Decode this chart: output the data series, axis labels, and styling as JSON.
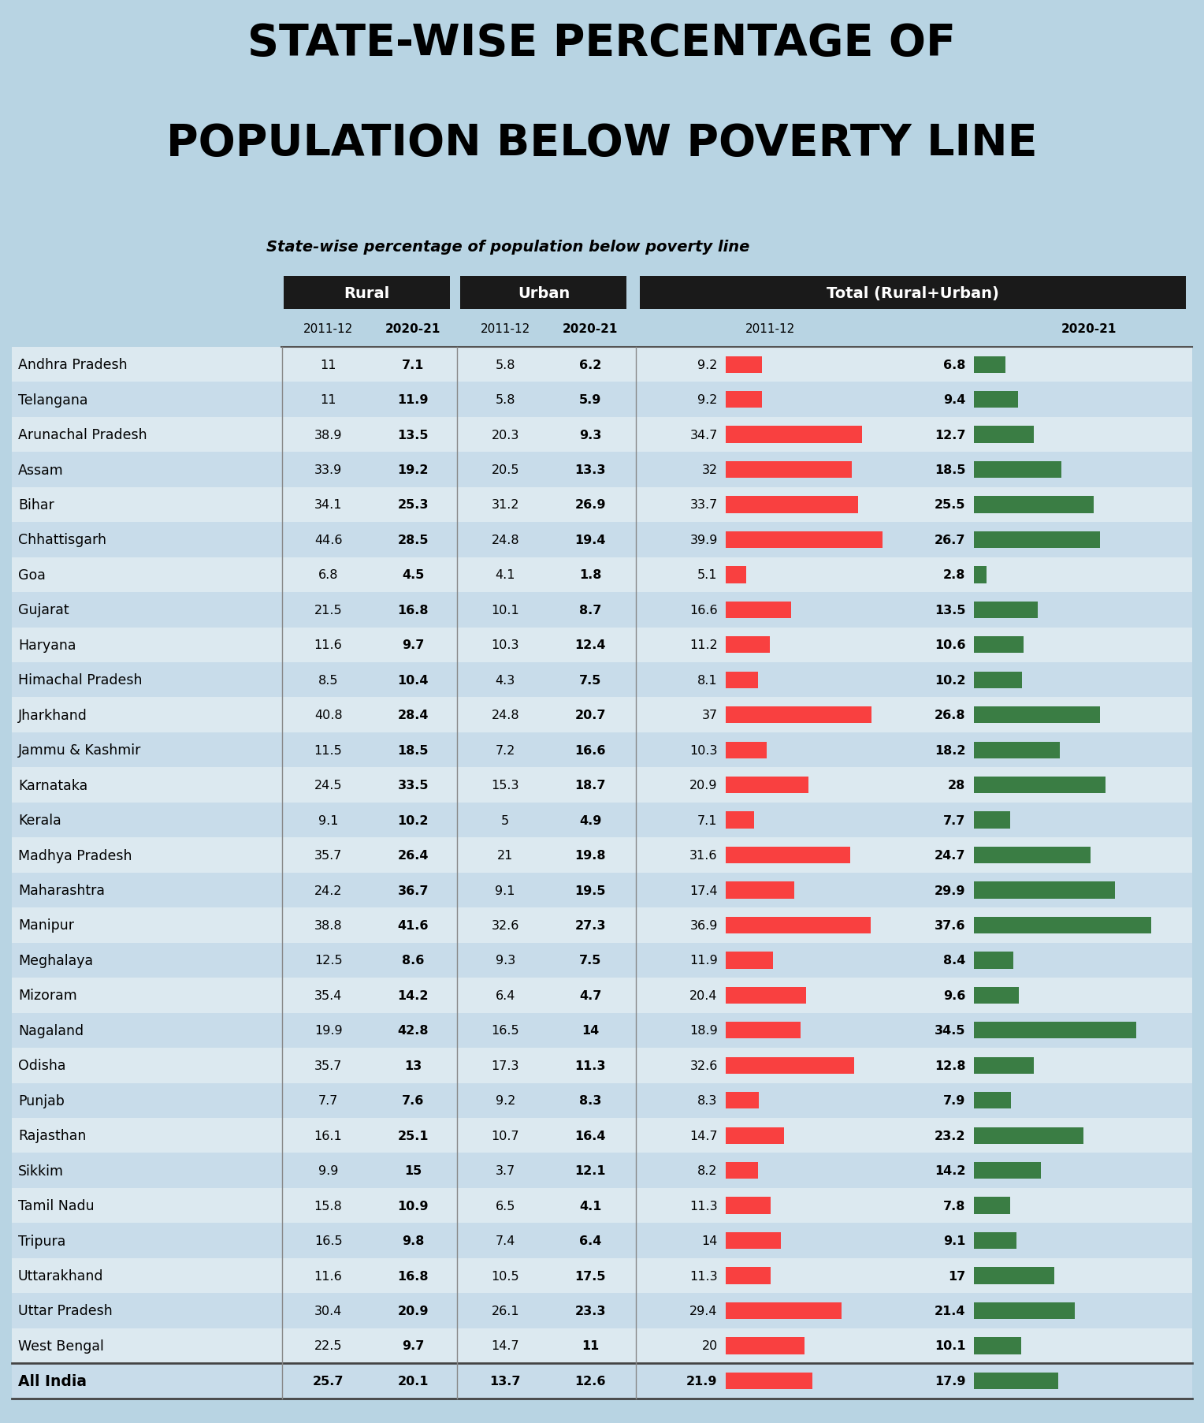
{
  "title_line1": "STATE-WISE PERCENTAGE OF",
  "title_line2": "POPULATION BELOW POVERTY LINE",
  "subtitle": "State-wise percentage of population below poverty line",
  "bg_color": "#b8d4e3",
  "header_bg": "#1a1a1a",
  "header_text": "#ffffff",
  "states": [
    "Andhra Pradesh",
    "Telangana",
    "Arunachal Pradesh",
    "Assam",
    "Bihar",
    "Chhattisgarh",
    "Goa",
    "Gujarat",
    "Haryana",
    "Himachal Pradesh",
    "Jharkhand",
    "Jammu & Kashmir",
    "Karnataka",
    "Kerala",
    "Madhya Pradesh",
    "Maharashtra",
    "Manipur",
    "Meghalaya",
    "Mizoram",
    "Nagaland",
    "Odisha",
    "Punjab",
    "Rajasthan",
    "Sikkim",
    "Tamil Nadu",
    "Tripura",
    "Uttarakhand",
    "Uttar Pradesh",
    "West Bengal"
  ],
  "rural_2011": [
    11,
    11,
    38.9,
    33.9,
    34.1,
    44.6,
    6.8,
    21.5,
    11.6,
    8.5,
    40.8,
    11.5,
    24.5,
    9.1,
    35.7,
    24.2,
    38.8,
    12.5,
    35.4,
    19.9,
    35.7,
    7.7,
    16.1,
    9.9,
    15.8,
    16.5,
    11.6,
    30.4,
    22.5
  ],
  "rural_2021": [
    7.1,
    11.9,
    13.5,
    19.2,
    25.3,
    28.5,
    4.5,
    16.8,
    9.7,
    10.4,
    28.4,
    18.5,
    33.5,
    10.2,
    26.4,
    36.7,
    41.6,
    8.6,
    14.2,
    42.8,
    13,
    7.6,
    25.1,
    15,
    10.9,
    9.8,
    16.8,
    20.9,
    9.7
  ],
  "urban_2011": [
    5.8,
    5.8,
    20.3,
    20.5,
    31.2,
    24.8,
    4.1,
    10.1,
    10.3,
    4.3,
    24.8,
    7.2,
    15.3,
    5,
    21,
    9.1,
    32.6,
    9.3,
    6.4,
    16.5,
    17.3,
    9.2,
    10.7,
    3.7,
    6.5,
    7.4,
    10.5,
    26.1,
    14.7
  ],
  "urban_2021": [
    6.2,
    5.9,
    9.3,
    13.3,
    26.9,
    19.4,
    1.8,
    8.7,
    12.4,
    7.5,
    20.7,
    16.6,
    18.7,
    4.9,
    19.8,
    19.5,
    27.3,
    7.5,
    4.7,
    14,
    11.3,
    8.3,
    16.4,
    12.1,
    4.1,
    6.4,
    17.5,
    23.3,
    11
  ],
  "total_2011": [
    9.2,
    9.2,
    34.7,
    32,
    33.7,
    39.9,
    5.1,
    16.6,
    11.2,
    8.1,
    37,
    10.3,
    20.9,
    7.1,
    31.6,
    17.4,
    36.9,
    11.9,
    20.4,
    18.9,
    32.6,
    8.3,
    14.7,
    8.2,
    11.3,
    14,
    11.3,
    29.4,
    20
  ],
  "total_2021": [
    6.8,
    9.4,
    12.7,
    18.5,
    25.5,
    26.7,
    2.8,
    13.5,
    10.6,
    10.2,
    26.8,
    18.2,
    28,
    7.7,
    24.7,
    29.9,
    37.6,
    8.4,
    9.6,
    34.5,
    12.8,
    7.9,
    23.2,
    14.2,
    7.8,
    9.1,
    17,
    21.4,
    10.1
  ],
  "all_india_rural_2011": 25.7,
  "all_india_rural_2021": 20.1,
  "all_india_urban_2011": 13.7,
  "all_india_urban_2021": 12.6,
  "all_india_total_2011": 21.9,
  "all_india_total_2021": 17.9,
  "bar_max": 45,
  "red_color": "#f94040",
  "green_color": "#3a7d44",
  "row_colors": [
    "#dce9f0",
    "#c8dcea"
  ]
}
